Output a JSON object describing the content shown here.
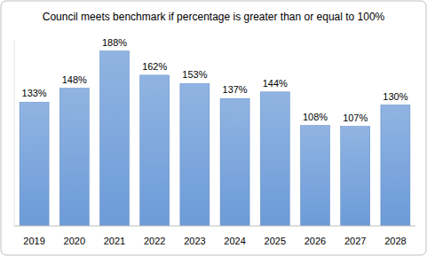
{
  "chart_data": {
    "type": "bar",
    "title": "Council meets benchmark if percentage is greater than or equal to 100%",
    "categories": [
      "2019",
      "2020",
      "2021",
      "2022",
      "2023",
      "2024",
      "2025",
      "2026",
      "2027",
      "2028"
    ],
    "values": [
      133,
      148,
      188,
      162,
      153,
      137,
      144,
      108,
      107,
      130
    ],
    "value_labels": [
      "133%",
      "148%",
      "188%",
      "162%",
      "153%",
      "137%",
      "144%",
      "108%",
      "107%",
      "130%"
    ],
    "color": "#6c9bd8",
    "ylim": [
      0,
      200
    ],
    "grid": false,
    "data_labels": true,
    "tick_labels": "x"
  }
}
